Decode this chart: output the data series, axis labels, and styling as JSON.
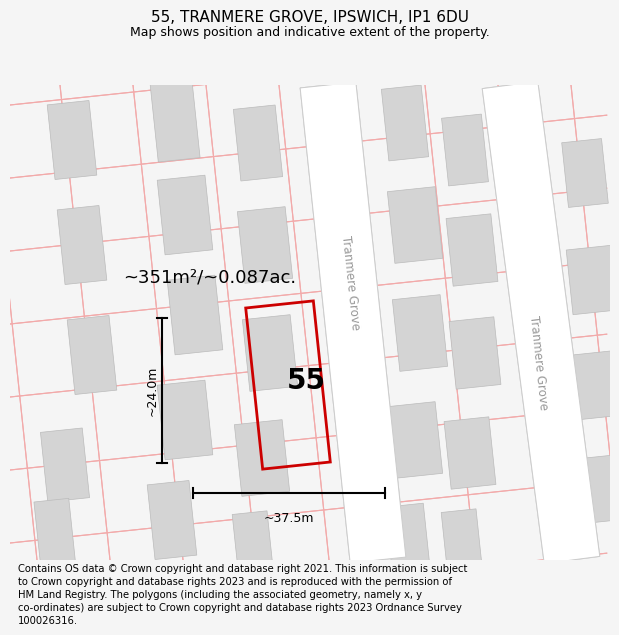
{
  "title_line1": "55, TRANMERE GROVE, IPSWICH, IP1 6DU",
  "title_line2": "Map shows position and indicative extent of the property.",
  "area_text": "~351m²/~0.087ac.",
  "property_number": "55",
  "width_label": "~37.5m",
  "height_label": "~24.0m",
  "street_name_top": "Tranmere Grove",
  "street_name_right": "Tranmere Grove",
  "footer_text": "Contains OS data © Crown copyright and database right 2021. This information is subject to Crown copyright and database rights 2023 and is reproduced with the permission of HM Land Registry. The polygons (including the associated geometry, namely x, y co-ordinates) are subject to Crown copyright and database rights 2023 Ordnance Survey 100026316.",
  "bg_color": "#f5f5f5",
  "map_bg": "#ffffff",
  "plot_color": "#cc0000",
  "block_color": "#d4d4d4",
  "road_color": "#ffffff",
  "grid_line_color": "#f2aaaa",
  "title_fontsize": 11,
  "subtitle_fontsize": 9,
  "footer_fontsize": 7.2
}
